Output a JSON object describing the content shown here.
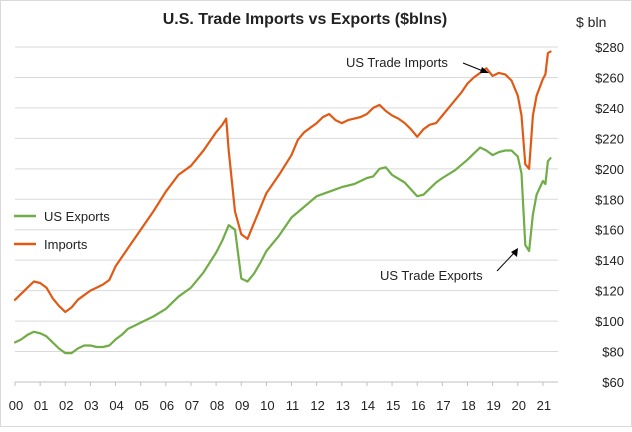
{
  "chart_data": {
    "type": "line",
    "title": "U.S. Trade Imports vs Exports ($blns)",
    "ylabel": "$ bln",
    "xlim": [
      2000,
      2021.6
    ],
    "ylim": [
      60,
      280
    ],
    "y_ticks": [
      60,
      80,
      100,
      120,
      140,
      160,
      180,
      200,
      220,
      240,
      260,
      280
    ],
    "y_tick_labels": [
      "$60",
      "$80",
      "$100",
      "$120",
      "$140",
      "$160",
      "$180",
      "$200",
      "$220",
      "$240",
      "$260",
      "$280"
    ],
    "x_ticks": [
      2000,
      2001,
      2002,
      2003,
      2004,
      2005,
      2006,
      2007,
      2008,
      2009,
      2010,
      2011,
      2012,
      2013,
      2014,
      2015,
      2016,
      2017,
      2018,
      2019,
      2020,
      2021
    ],
    "x_tick_labels": [
      "00",
      "01",
      "02",
      "03",
      "04",
      "05",
      "06",
      "07",
      "08",
      "09",
      "10",
      "11",
      "12",
      "13",
      "14",
      "15",
      "16",
      "17",
      "18",
      "19",
      "20",
      "21"
    ],
    "grid": "horizontal",
    "legend_position": "left",
    "series": [
      {
        "name": "US Exports",
        "color": "#70ad47",
        "x": [
          2000.0,
          2000.25,
          2000.5,
          2000.75,
          2001.0,
          2001.25,
          2001.5,
          2001.75,
          2002.0,
          2002.25,
          2002.5,
          2002.75,
          2003.0,
          2003.25,
          2003.5,
          2003.75,
          2004.0,
          2004.25,
          2004.5,
          2004.75,
          2005.0,
          2005.5,
          2006.0,
          2006.5,
          2007.0,
          2007.5,
          2008.0,
          2008.25,
          2008.5,
          2008.75,
          2009.0,
          2009.25,
          2009.5,
          2009.75,
          2010.0,
          2010.5,
          2011.0,
          2011.5,
          2012.0,
          2012.5,
          2013.0,
          2013.5,
          2014.0,
          2014.25,
          2014.5,
          2014.75,
          2015.0,
          2015.5,
          2016.0,
          2016.25,
          2016.5,
          2016.75,
          2017.0,
          2017.5,
          2018.0,
          2018.25,
          2018.5,
          2018.75,
          2019.0,
          2019.25,
          2019.5,
          2019.75,
          2020.0,
          2020.15,
          2020.3,
          2020.45,
          2020.6,
          2020.75,
          2021.0,
          2021.1,
          2021.2,
          2021.3
        ],
        "y": [
          86,
          88,
          91,
          93,
          92,
          90,
          86,
          82,
          79,
          79,
          82,
          84,
          84,
          83,
          83,
          84,
          88,
          91,
          95,
          97,
          99,
          103,
          108,
          116,
          122,
          132,
          145,
          153,
          163,
          160,
          128,
          126,
          131,
          138,
          146,
          156,
          168,
          175,
          182,
          185,
          188,
          190,
          194,
          195,
          200,
          201,
          196,
          191,
          182,
          183,
          187,
          191,
          194,
          199,
          206,
          210,
          214,
          212,
          209,
          211,
          212,
          212,
          208,
          197,
          150,
          146,
          170,
          183,
          192,
          190,
          205,
          207
        ]
      },
      {
        "name": "Imports",
        "color": "#e05a16",
        "x": [
          2000.0,
          2000.25,
          2000.5,
          2000.75,
          2001.0,
          2001.25,
          2001.5,
          2001.75,
          2002.0,
          2002.25,
          2002.5,
          2002.75,
          2003.0,
          2003.25,
          2003.5,
          2003.75,
          2004.0,
          2004.5,
          2005.0,
          2005.5,
          2006.0,
          2006.5,
          2007.0,
          2007.5,
          2008.0,
          2008.25,
          2008.4,
          2008.5,
          2008.75,
          2009.0,
          2009.25,
          2009.5,
          2009.75,
          2010.0,
          2010.5,
          2011.0,
          2011.25,
          2011.5,
          2011.75,
          2012.0,
          2012.25,
          2012.5,
          2012.75,
          2013.0,
          2013.25,
          2013.5,
          2013.75,
          2014.0,
          2014.25,
          2014.5,
          2014.75,
          2015.0,
          2015.25,
          2015.5,
          2015.75,
          2016.0,
          2016.25,
          2016.5,
          2016.75,
          2017.0,
          2017.25,
          2017.5,
          2017.75,
          2018.0,
          2018.25,
          2018.5,
          2018.75,
          2019.0,
          2019.25,
          2019.5,
          2019.75,
          2020.0,
          2020.15,
          2020.3,
          2020.45,
          2020.6,
          2020.75,
          2021.0,
          2021.1,
          2021.2,
          2021.3
        ],
        "y": [
          114,
          118,
          122,
          126,
          125,
          122,
          115,
          110,
          106,
          109,
          114,
          117,
          120,
          122,
          124,
          127,
          136,
          148,
          160,
          172,
          185,
          196,
          202,
          212,
          224,
          229,
          233,
          212,
          172,
          157,
          154,
          164,
          174,
          184,
          196,
          209,
          219,
          224,
          227,
          230,
          234,
          236,
          232,
          230,
          232,
          233,
          234,
          236,
          240,
          242,
          238,
          235,
          233,
          230,
          226,
          221,
          226,
          229,
          230,
          235,
          240,
          245,
          250,
          256,
          260,
          263,
          266,
          261,
          263,
          262,
          258,
          248,
          235,
          203,
          200,
          235,
          248,
          259,
          262,
          276,
          277
        ]
      }
    ],
    "annotations": [
      {
        "text": "US Trade Imports",
        "points_to": "Imports"
      },
      {
        "text": "US Trade Exports",
        "points_to": "US Exports"
      }
    ]
  }
}
